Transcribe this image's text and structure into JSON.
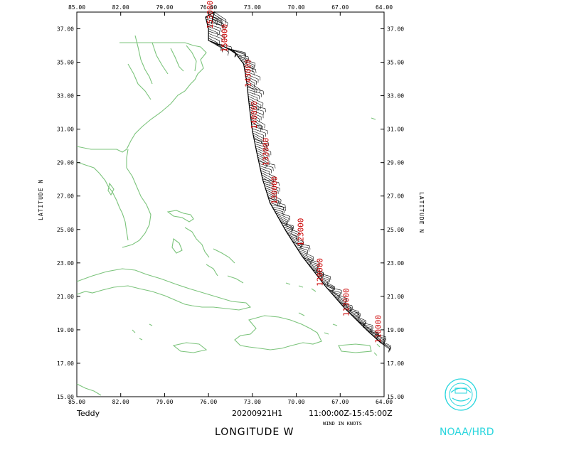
{
  "storm_name": "Teddy",
  "flight_id": "20200921H1",
  "time_range": "11:00:00Z-15:45:00Z",
  "wind_units": "WIND IN KNOTS",
  "x_title": "LONGITUDE   W",
  "y_title_left": "LATITUDE   N",
  "y_title_right": "LATITUDE   N",
  "logo_text": "NOAA/HRD",
  "colors": {
    "coast": "#7cc47c",
    "track": "#000000",
    "time_label": "#cc0000",
    "logo": "#2ad6de"
  },
  "chart_data": {
    "type": "map",
    "xlim": [
      85,
      64
    ],
    "ylim": [
      15,
      38
    ],
    "x_ticks": [
      "85.00",
      "82.00",
      "79.00",
      "76.00",
      "73.00",
      "70.00",
      "67.00",
      "64.00"
    ],
    "y_ticks": [
      "15.00",
      "17.00",
      "19.00",
      "21.00",
      "23.00",
      "25.00",
      "27.00",
      "29.00",
      "31.00",
      "33.00",
      "35.00",
      "37.00"
    ],
    "track": [
      [
        64.2,
        18.2
      ],
      [
        65.2,
        19.0
      ],
      [
        66.7,
        20.3
      ],
      [
        68.0,
        21.6
      ],
      [
        69.6,
        23.4
      ],
      [
        70.7,
        24.9
      ],
      [
        71.8,
        26.6
      ],
      [
        72.3,
        28.0
      ],
      [
        72.7,
        29.6
      ],
      [
        73.0,
        30.9
      ],
      [
        73.2,
        32.3
      ],
      [
        73.4,
        33.9
      ],
      [
        73.6,
        34.9
      ],
      [
        74.3,
        35.7
      ],
      [
        75.4,
        36.1
      ],
      [
        76.0,
        36.3
      ],
      [
        76.0,
        37.0
      ],
      [
        76.2,
        37.7
      ],
      [
        75.6,
        38.0
      ],
      [
        75.8,
        37.3
      ]
    ],
    "time_labels": [
      {
        "text": "110000",
        "lon": 64.5,
        "lat": 18.2
      },
      {
        "text": "113000",
        "lon": 66.7,
        "lat": 19.8
      },
      {
        "text": "120000",
        "lon": 68.5,
        "lat": 21.6
      },
      {
        "text": "123000",
        "lon": 69.8,
        "lat": 24.0
      },
      {
        "text": "130000",
        "lon": 71.6,
        "lat": 26.5
      },
      {
        "text": "133000",
        "lon": 72.2,
        "lat": 28.8
      },
      {
        "text": "140000",
        "lon": 73.0,
        "lat": 31.0
      },
      {
        "text": "143000",
        "lon": 73.4,
        "lat": 33.5
      },
      {
        "text": "150000",
        "lon": 75.0,
        "lat": 35.6
      },
      {
        "text": "153000",
        "lon": 76.0,
        "lat": 37.0
      }
    ]
  }
}
